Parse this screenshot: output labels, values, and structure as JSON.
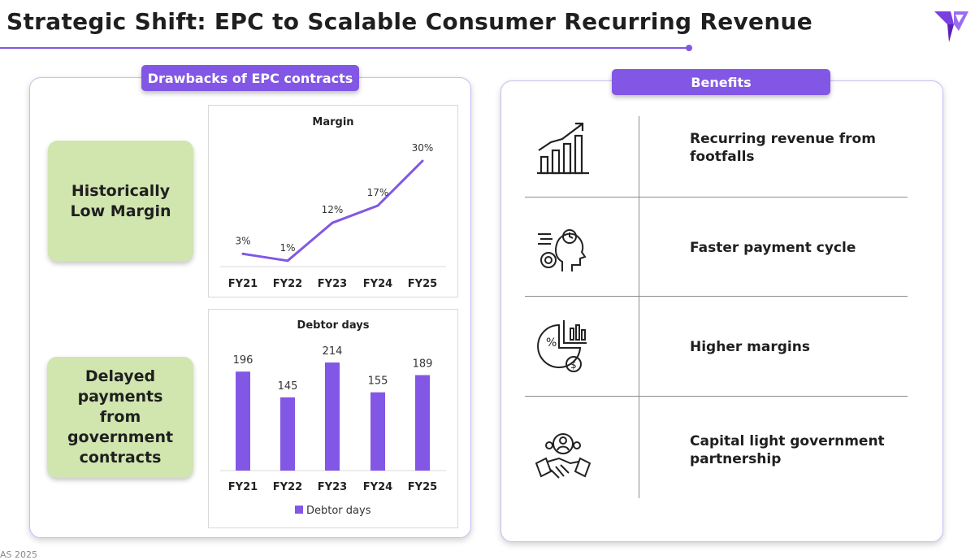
{
  "page": {
    "title": "Strategic Shift: EPC to Scalable Consumer Recurring Revenue",
    "footer": "AS 2025"
  },
  "colors": {
    "accent": "#8257e5",
    "green": "#d1e5af",
    "line": "#8c8c8c"
  },
  "left": {
    "pill": "Drawbacks of EPC contracts",
    "box1": "Historically Low Margin",
    "box2": "Delayed payments from government contracts"
  },
  "right": {
    "pill": "Benefits",
    "items": [
      {
        "icon": "growth-chart-icon",
        "label": "Recurring revenue from footfalls"
      },
      {
        "icon": "head-gears-clock-icon",
        "label": "Faster payment cycle"
      },
      {
        "icon": "pie-chart-dollar-icon",
        "label": "Higher margins"
      },
      {
        "icon": "handshake-people-icon",
        "label": "Capital light government partnership"
      }
    ]
  },
  "chart_data": [
    {
      "type": "line",
      "title": "Margin",
      "categories": [
        "FY21",
        "FY22",
        "FY23",
        "FY24",
        "FY25"
      ],
      "values": [
        3,
        1,
        12,
        17,
        30
      ],
      "labels": [
        "3%",
        "1%",
        "12%",
        "17%",
        "30%"
      ],
      "ylim": [
        0,
        30
      ]
    },
    {
      "type": "bar",
      "title": "Debtor days",
      "categories": [
        "FY21",
        "FY22",
        "FY23",
        "FY24",
        "FY25"
      ],
      "series": [
        {
          "name": "Debtor days",
          "values": [
            196,
            145,
            214,
            155,
            189
          ]
        }
      ],
      "ylim": [
        0,
        214
      ]
    }
  ]
}
